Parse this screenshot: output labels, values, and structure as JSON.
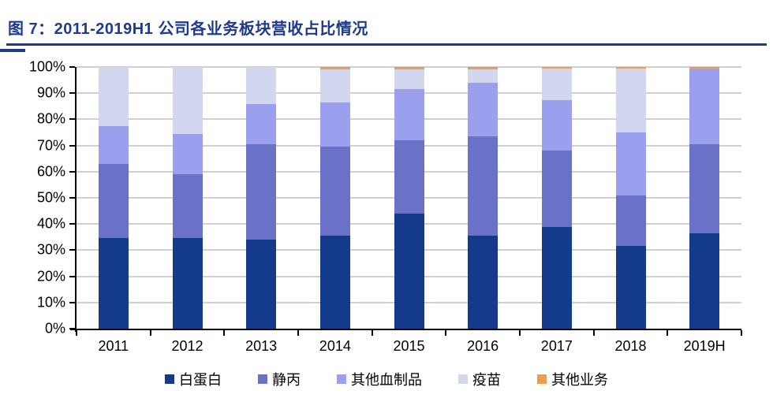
{
  "header": {
    "title": "图 7：2011-2019H1 公司各业务板块营收占比情况"
  },
  "theme": {
    "title_color": "#1E3A8D",
    "rule_color": "#1E3A8D",
    "grid_color": "#D0D0D0",
    "axis_color": "#000000"
  },
  "chart_data": {
    "type": "bar",
    "stacked": true,
    "title": "2011-2019H1 公司各业务板块营收占比情况",
    "categories": [
      "2011",
      "2012",
      "2013",
      "2014",
      "2015",
      "2016",
      "2017",
      "2018",
      "2019H"
    ],
    "series": [
      {
        "name": "白蛋白",
        "color": "#143A8C",
        "values": [
          34.5,
          34.5,
          34.0,
          35.5,
          44.0,
          35.5,
          39.0,
          31.5,
          36.5
        ]
      },
      {
        "name": "静丙",
        "color": "#6A72C7",
        "values": [
          28.5,
          24.5,
          36.5,
          34.0,
          28.0,
          38.0,
          29.0,
          19.5,
          34.0
        ]
      },
      {
        "name": "其他血制品",
        "color": "#9AA0EE",
        "values": [
          14.5,
          15.5,
          15.5,
          17.0,
          19.5,
          20.5,
          19.5,
          24.0,
          28.5
        ]
      },
      {
        "name": "疫苗",
        "color": "#D3D6EF",
        "values": [
          22.5,
          25.5,
          14.0,
          12.5,
          7.5,
          5.0,
          12.0,
          24.5,
          0.0
        ]
      },
      {
        "name": "其他业务",
        "color": "#EE9C4F",
        "values": [
          0.0,
          0.0,
          0.0,
          1.0,
          1.0,
          1.0,
          0.5,
          0.5,
          1.0
        ]
      }
    ],
    "xlabel": "",
    "ylabel": "",
    "ylim": [
      0,
      100
    ],
    "ytick_step": 10,
    "ytick_suffix": "%",
    "grid": true,
    "legend_position": "bottom"
  }
}
